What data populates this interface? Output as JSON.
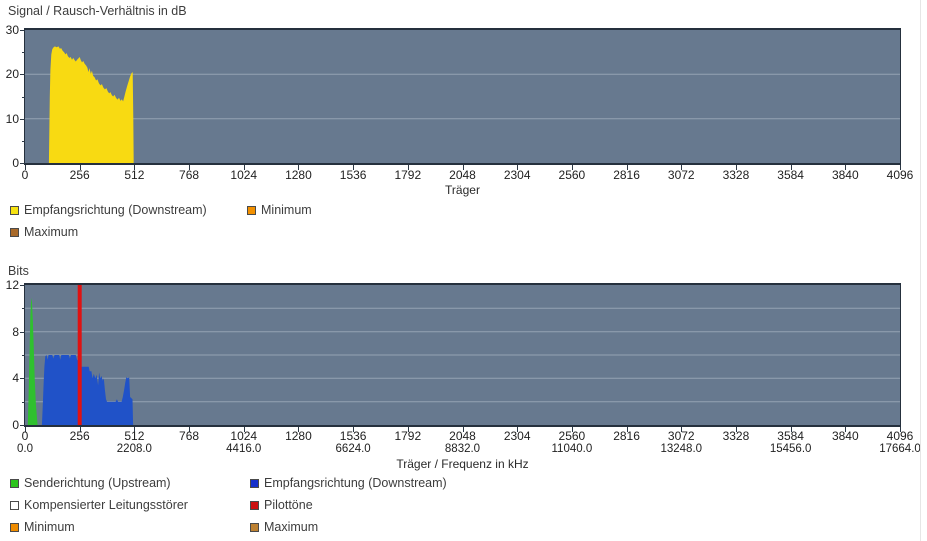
{
  "chart_data": [
    {
      "type": "area",
      "title": "Signal / Rausch-Verhältnis in dB",
      "xlabel": "Träger",
      "xlim": [
        0,
        4096
      ],
      "ylim": [
        0,
        30
      ],
      "x_ticks": [
        {
          "v": 0
        },
        {
          "v": 256
        },
        {
          "v": 512
        },
        {
          "v": 768
        },
        {
          "v": 1024
        },
        {
          "v": 1280
        },
        {
          "v": 1536
        },
        {
          "v": 1792
        },
        {
          "v": 2048
        },
        {
          "v": 2304
        },
        {
          "v": 2560
        },
        {
          "v": 2816
        },
        {
          "v": 3072
        },
        {
          "v": 3328
        },
        {
          "v": 3584
        },
        {
          "v": 3840
        },
        {
          "v": 4096
        }
      ],
      "y_ticks": [
        0,
        10,
        20,
        30
      ],
      "y_minor_ticks": [
        5,
        15,
        25
      ],
      "grid_y": [
        10,
        20
      ],
      "grid_on": true,
      "plot_bg": "#67798f",
      "grid_color": "#cdd6df",
      "series": [
        {
          "name": "Empfangsrichtung (Downstream)",
          "color": "#f8da12",
          "points": [
            [
              112,
              0
            ],
            [
              114,
              8
            ],
            [
              116,
              15
            ],
            [
              119,
              21
            ],
            [
              123,
              24.5
            ],
            [
              128,
              25.7
            ],
            [
              134,
              26.1
            ],
            [
              140,
              26.3
            ],
            [
              148,
              26.1
            ],
            [
              157,
              26.3
            ],
            [
              163,
              25.8
            ],
            [
              170,
              25.9
            ],
            [
              176,
              25.3
            ],
            [
              183,
              25.0
            ],
            [
              189,
              24.5
            ],
            [
              195,
              24.8
            ],
            [
              201,
              24.1
            ],
            [
              208,
              23.7
            ],
            [
              214,
              23.9
            ],
            [
              220,
              23.3
            ],
            [
              226,
              23.7
            ],
            [
              232,
              23.2
            ],
            [
              238,
              22.9
            ],
            [
              244,
              23.3
            ],
            [
              250,
              23.6
            ],
            [
              256,
              23.9
            ],
            [
              261,
              23.2
            ],
            [
              267,
              22.7
            ],
            [
              273,
              23.0
            ],
            [
              279,
              22.4
            ],
            [
              286,
              22.0
            ],
            [
              292,
              21.5
            ],
            [
              297,
              20.5
            ],
            [
              302,
              21.4
            ],
            [
              308,
              20.1
            ],
            [
              313,
              20.8
            ],
            [
              319,
              19.7
            ],
            [
              326,
              19.3
            ],
            [
              333,
              18.6
            ],
            [
              339,
              18.9
            ],
            [
              346,
              18.0
            ],
            [
              353,
              17.5
            ],
            [
              360,
              17.8
            ],
            [
              367,
              17.0
            ],
            [
              374,
              16.6
            ],
            [
              381,
              16.9
            ],
            [
              388,
              16.1
            ],
            [
              394,
              15.7
            ],
            [
              400,
              16.0
            ],
            [
              407,
              15.3
            ],
            [
              413,
              15.0
            ],
            [
              419,
              15.4
            ],
            [
              426,
              14.7
            ],
            [
              433,
              14.3
            ],
            [
              440,
              14.7
            ],
            [
              447,
              14.0
            ],
            [
              453,
              14.4
            ],
            [
              459,
              13.9
            ],
            [
              465,
              14.9
            ],
            [
              471,
              16.1
            ],
            [
              478,
              17.3
            ],
            [
              485,
              18.4
            ],
            [
              492,
              19.5
            ],
            [
              499,
              20.3
            ],
            [
              504,
              20.5
            ],
            [
              507,
              10
            ],
            [
              509,
              0
            ]
          ]
        }
      ],
      "legend": [
        {
          "label": "Empfangsrichtung (Downstream)",
          "color": "#f6e211"
        },
        {
          "label": "Minimum",
          "color": "#f29000"
        },
        {
          "label": "Maximum",
          "color": "#a96a2a"
        }
      ]
    },
    {
      "type": "area",
      "title": "Bits",
      "xlabel": "Träger / Frequenz in kHz",
      "xlim": [
        0,
        4096
      ],
      "ylim": [
        0,
        12
      ],
      "x_ticks": [
        {
          "v": 0,
          "sub": "0.0"
        },
        {
          "v": 256
        },
        {
          "v": 512,
          "sub": "2208.0"
        },
        {
          "v": 768
        },
        {
          "v": 1024,
          "sub": "4416.0"
        },
        {
          "v": 1280
        },
        {
          "v": 1536,
          "sub": "6624.0"
        },
        {
          "v": 1792
        },
        {
          "v": 2048,
          "sub": "8832.0"
        },
        {
          "v": 2304
        },
        {
          "v": 2560,
          "sub": "11040.0"
        },
        {
          "v": 2816
        },
        {
          "v": 3072,
          "sub": "13248.0"
        },
        {
          "v": 3328
        },
        {
          "v": 3584,
          "sub": "15456.0"
        },
        {
          "v": 3840
        },
        {
          "v": 4096,
          "sub": "17664.0"
        }
      ],
      "y_ticks": [
        0,
        4,
        8,
        12
      ],
      "y_minor_ticks": [
        2,
        6,
        10
      ],
      "grid_y": [
        2,
        4,
        6,
        8,
        10
      ],
      "grid_on": true,
      "plot_bg": "#67798f",
      "grid_color": "#cdd6df",
      "series": [
        {
          "name": "Senderichtung (Upstream)",
          "color": "#2fc02f",
          "points": [
            [
              13,
              0
            ],
            [
              17,
              2.5
            ],
            [
              21,
              6.0
            ],
            [
              25,
              9.2
            ],
            [
              29,
              10.9
            ],
            [
              33,
              10.5
            ],
            [
              37,
              8.8
            ],
            [
              41,
              6.5
            ],
            [
              46,
              3.8
            ],
            [
              51,
              1.8
            ],
            [
              56,
              0.6
            ],
            [
              59,
              0
            ]
          ]
        },
        {
          "name": "Empfangsrichtung (Downstream)",
          "color": "#2052c8",
          "points": [
            [
              79,
              0
            ],
            [
              83,
              1.5
            ],
            [
              87,
              3.5
            ],
            [
              91,
              5.0
            ],
            [
              95,
              5.9
            ],
            [
              101,
              6.0
            ],
            [
              106,
              5.6
            ],
            [
              110,
              6.0
            ],
            [
              128,
              6.0
            ],
            [
              133,
              5.7
            ],
            [
              138,
              6.0
            ],
            [
              160,
              6.0
            ],
            [
              165,
              5.6
            ],
            [
              170,
              6.0
            ],
            [
              205,
              6.0
            ],
            [
              210,
              5.7
            ],
            [
              215,
              6.0
            ],
            [
              238,
              6.0
            ],
            [
              244,
              5.6
            ],
            [
              250,
              5.5
            ],
            [
              257,
              5.5
            ],
            [
              261,
              5.0
            ],
            [
              298,
              5.0
            ],
            [
              303,
              4.6
            ],
            [
              311,
              4.6
            ],
            [
              316,
              4.0
            ],
            [
              322,
              4.4
            ],
            [
              329,
              4.0
            ],
            [
              335,
              4.3
            ],
            [
              342,
              3.4
            ],
            [
              347,
              4.5
            ],
            [
              352,
              4.0
            ],
            [
              358,
              4.2
            ],
            [
              364,
              3.8
            ],
            [
              369,
              4.0
            ],
            [
              374,
              3.0
            ],
            [
              379,
              2.2
            ],
            [
              384,
              2.0
            ],
            [
              424,
              2.0
            ],
            [
              430,
              2.2
            ],
            [
              436,
              2.0
            ],
            [
              452,
              2.0
            ],
            [
              458,
              2.4
            ],
            [
              464,
              3.0
            ],
            [
              469,
              3.6
            ],
            [
              474,
              4.1
            ],
            [
              481,
              4.0
            ],
            [
              488,
              4.1
            ],
            [
              492,
              2.4
            ],
            [
              503,
              2.2
            ],
            [
              506,
              0
            ]
          ]
        },
        {
          "name": "Pilottöne",
          "type": "vline",
          "color": "#e01212",
          "x": 256,
          "width": 4
        }
      ],
      "legend": [
        {
          "label": "Senderichtung (Upstream)",
          "color": "#2cc41c"
        },
        {
          "label": "Empfangsrichtung (Downstream)",
          "color": "#1530cc"
        },
        {
          "label": "Kompensierter Leitungsstörer",
          "color": "#ffffff"
        },
        {
          "label": "Pilottöne",
          "color": "#cc0f0f"
        },
        {
          "label": "Minimum",
          "color": "#ef8c00"
        },
        {
          "label": "Maximum",
          "color": "#bd8132"
        }
      ]
    }
  ]
}
